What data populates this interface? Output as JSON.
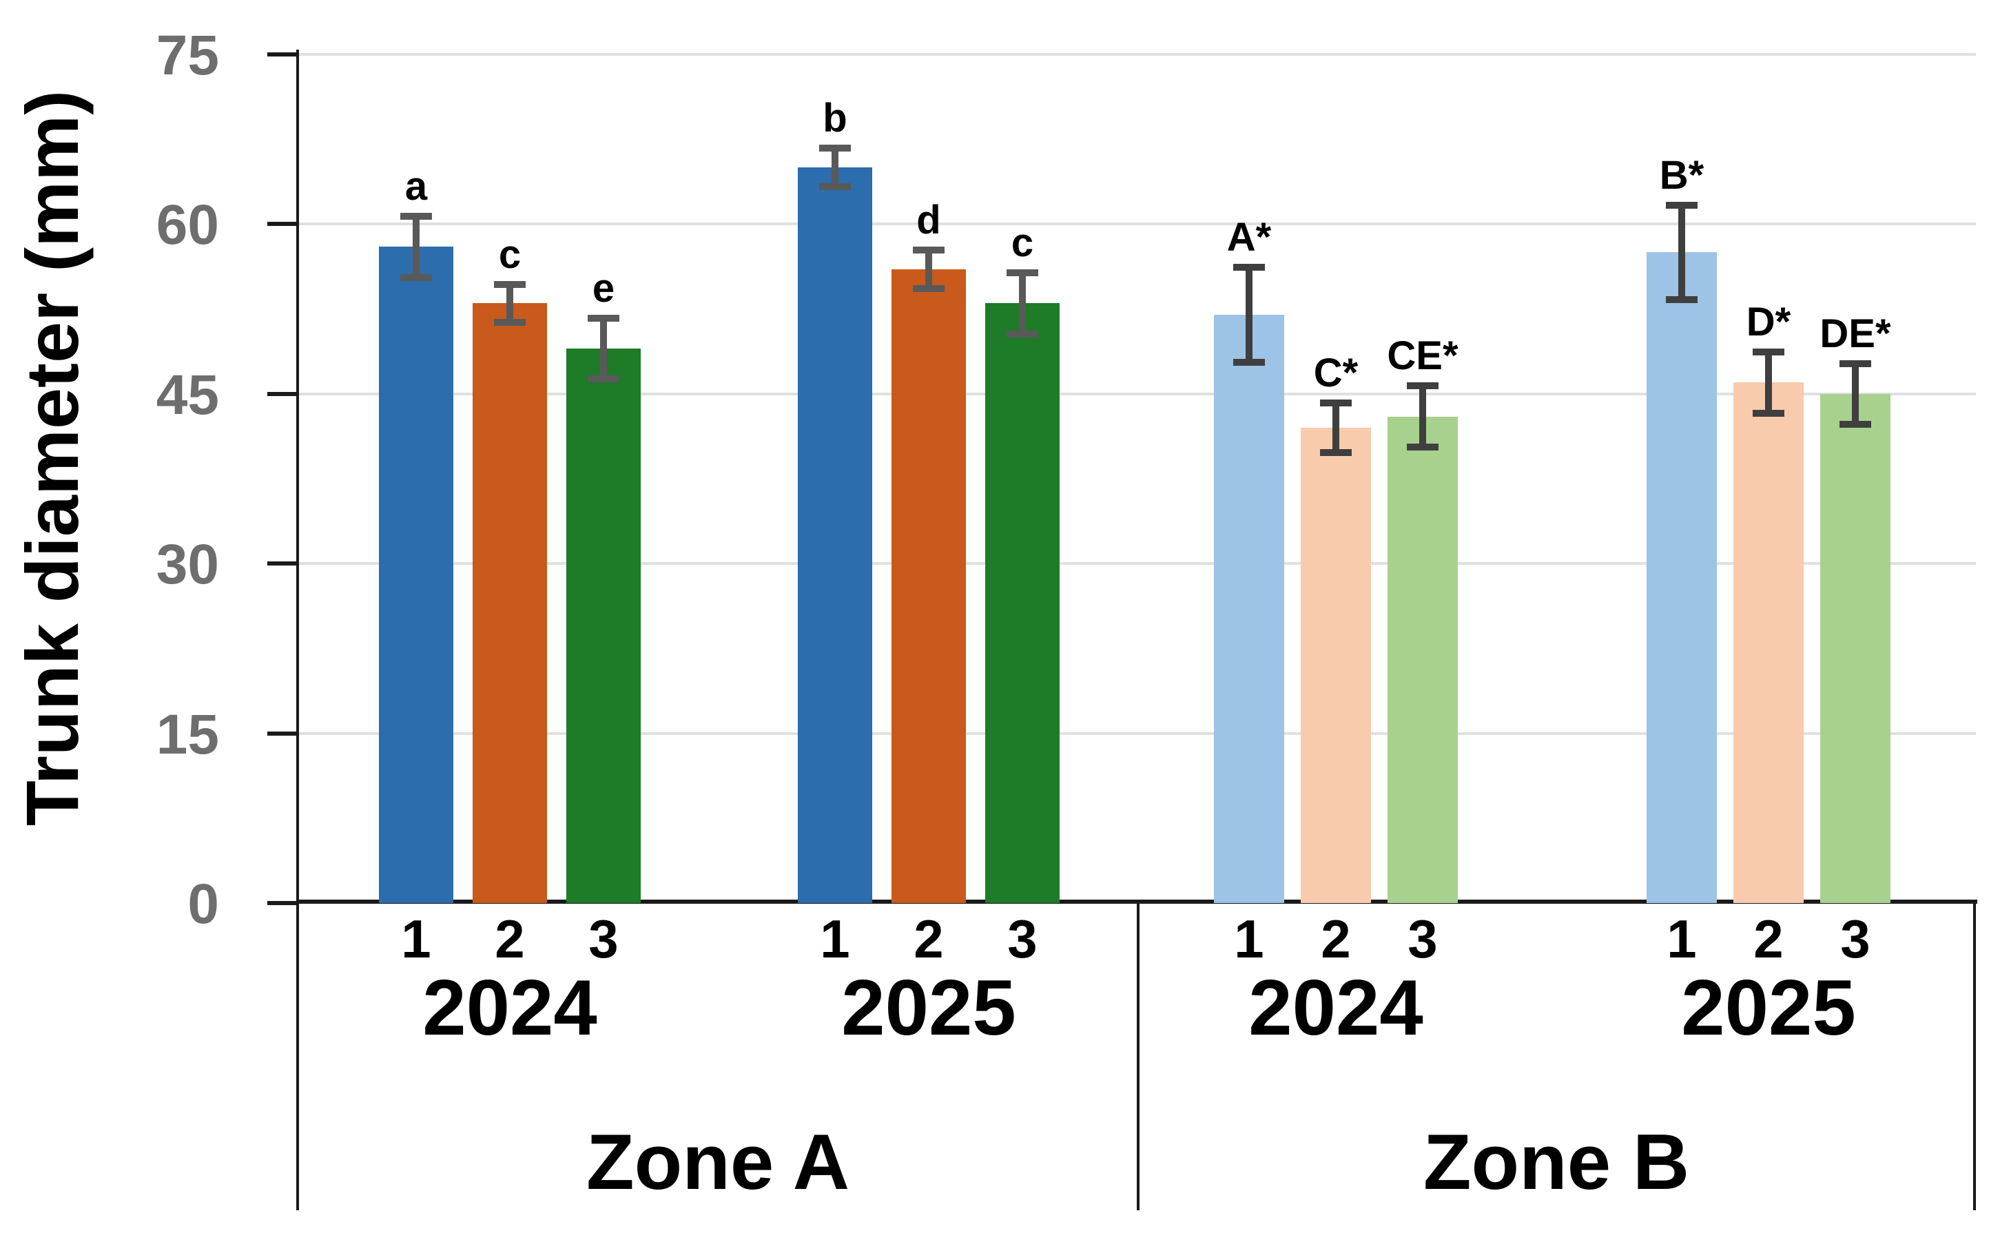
{
  "chart_data": {
    "type": "bar",
    "title": "",
    "ylabel": "Trunk diameter (mm)",
    "xlabel": "",
    "ylim": [
      0,
      75
    ],
    "yticks": [
      0,
      15,
      30,
      45,
      60,
      75
    ],
    "grid": "horizontal",
    "legend": false,
    "value_unit": "mm",
    "colors": {
      "axis": "#1a1a1a",
      "gridline": "#e0e0e0",
      "tick_labels": "#6e6e6e",
      "text": "#000000",
      "background": "#ffffff"
    },
    "zones": [
      {
        "label": "Zone A",
        "error_color": "#595959",
        "years": [
          {
            "label": "2024",
            "bars": [
              {
                "bar_label": "1",
                "value": 58,
                "error": 3,
                "sig": "a",
                "color": "#2c6dad"
              },
              {
                "bar_label": "2",
                "value": 53,
                "error": 2,
                "sig": "c",
                "color": "#c95a1b"
              },
              {
                "bar_label": "3",
                "value": 49,
                "error": 3,
                "sig": "e",
                "color": "#1e7b28"
              }
            ]
          },
          {
            "label": "2025",
            "bars": [
              {
                "bar_label": "1",
                "value": 65,
                "error": 2,
                "sig": "b",
                "color": "#2c6dad"
              },
              {
                "bar_label": "2",
                "value": 56,
                "error": 2,
                "sig": "d",
                "color": "#c95a1b"
              },
              {
                "bar_label": "3",
                "value": 53,
                "error": 3,
                "sig": "c",
                "color": "#1e7b28"
              }
            ]
          }
        ]
      },
      {
        "label": "Zone B",
        "error_color": "#3f3f3f",
        "years": [
          {
            "label": "2024",
            "bars": [
              {
                "bar_label": "1",
                "value": 52,
                "error": 4.5,
                "sig": "A*",
                "color": "#9dc3e6"
              },
              {
                "bar_label": "2",
                "value": 42,
                "error": 2.5,
                "sig": "C*",
                "color": "#f8cbad"
              },
              {
                "bar_label": "3",
                "value": 43,
                "error": 3,
                "sig": "CE*",
                "color": "#a9d18e"
              }
            ]
          },
          {
            "label": "2025",
            "bars": [
              {
                "bar_label": "1",
                "value": 57.5,
                "error": 4.5,
                "sig": "B*",
                "color": "#9dc3e6"
              },
              {
                "bar_label": "2",
                "value": 46,
                "error": 3,
                "sig": "D*",
                "color": "#f8cbad"
              },
              {
                "bar_label": "3",
                "value": 45,
                "error": 3,
                "sig": "DE*",
                "color": "#a9d18e"
              }
            ]
          }
        ]
      }
    ]
  }
}
